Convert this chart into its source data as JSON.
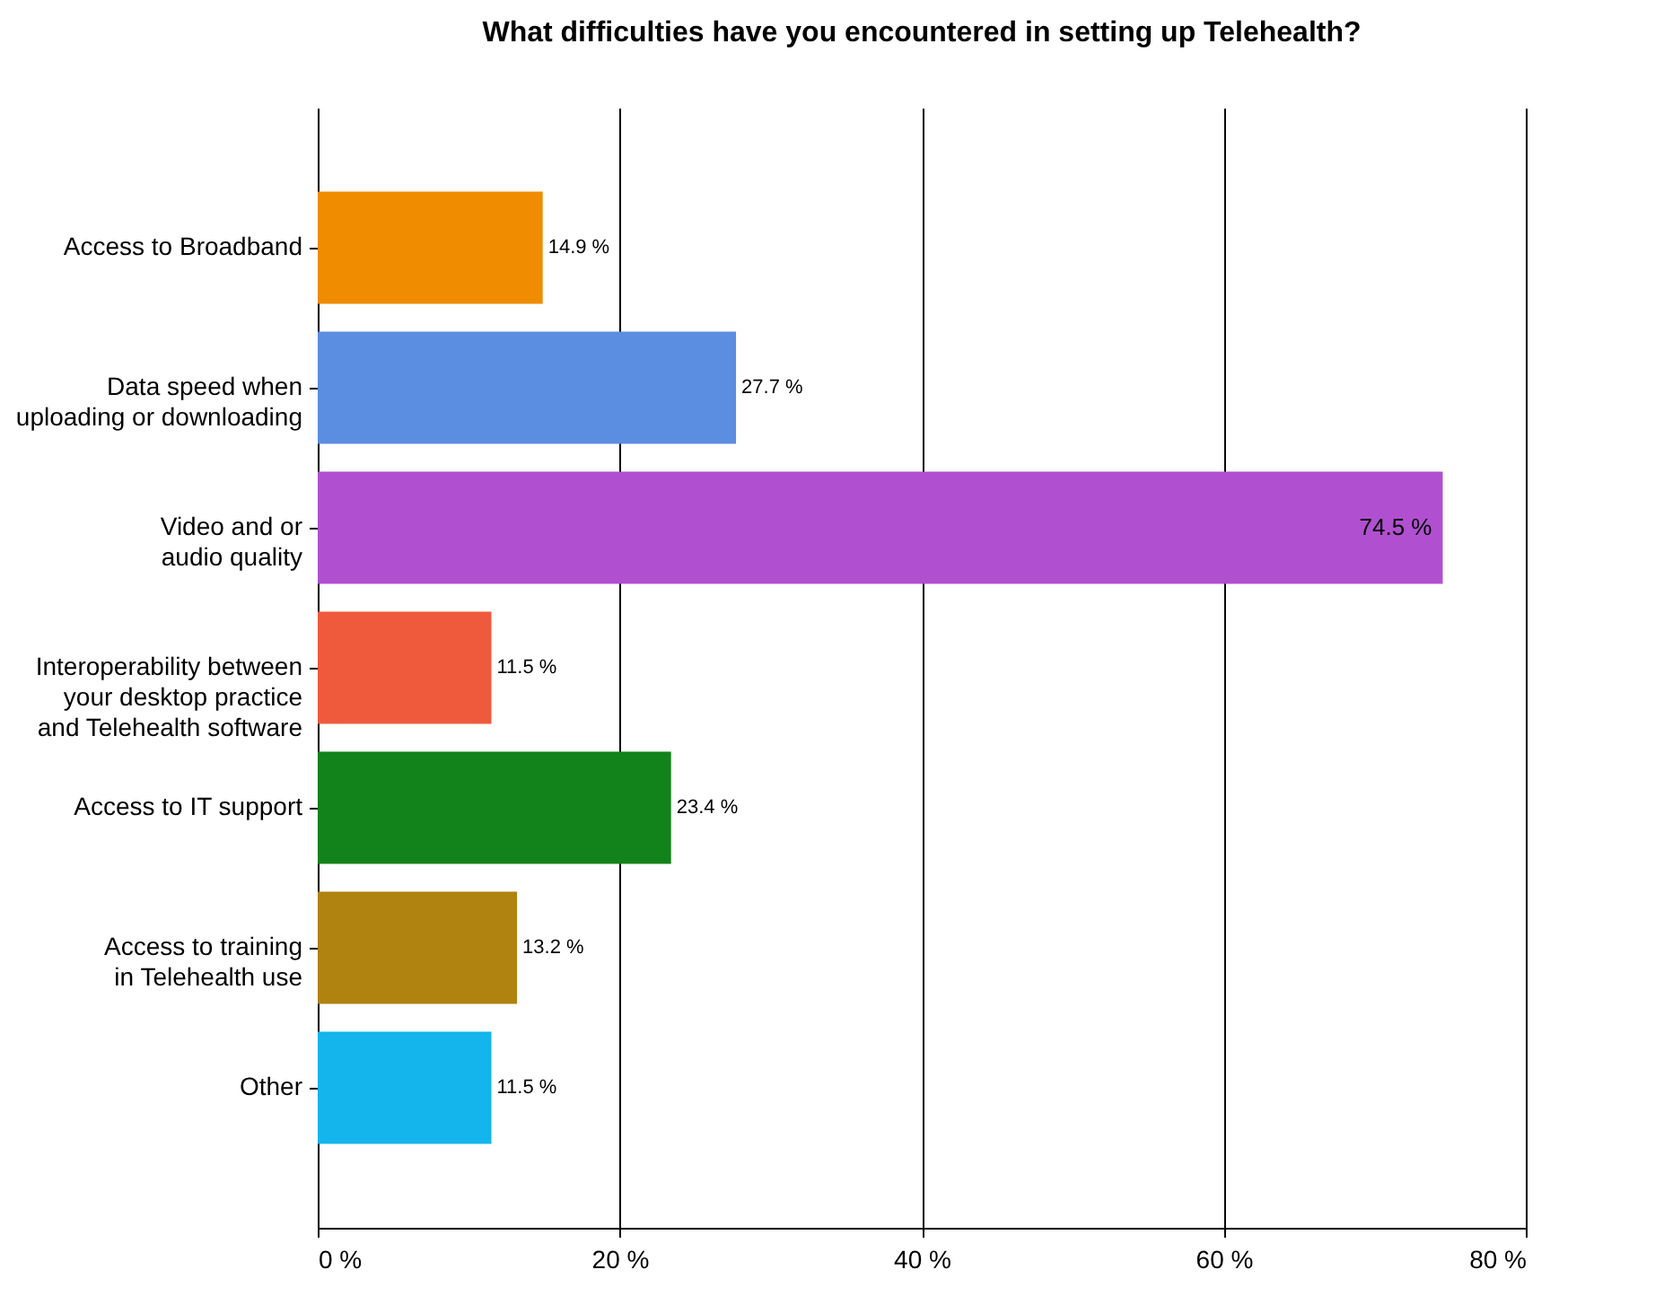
{
  "chart_data": {
    "type": "bar",
    "orientation": "horizontal",
    "title": "What difficulties have you encountered in setting up Telehealth?",
    "categories": [
      "Access to Broadband",
      "Data speed when uploading or downloading",
      "Video and or audio quality",
      "Interoperability between your desktop practice and Telehealth software",
      "Access to IT support",
      "Access to training in Telehealth use",
      "Other"
    ],
    "values": [
      14.9,
      27.7,
      74.5,
      11.5,
      23.4,
      13.2,
      11.5
    ],
    "value_labels": [
      "14.9 %",
      "27.7 %",
      "74.5 %",
      "11.5 %",
      "23.4 %",
      "13.2 %",
      "11.5 %"
    ],
    "colors": [
      "#f08c00",
      "#5b8de0",
      "#b050d0",
      "#f05a3c",
      "#12821a",
      "#b08210",
      "#14b4ec"
    ],
    "xlim": [
      0,
      80
    ],
    "xticks": [
      {
        "value": 0,
        "label": "0 %"
      },
      {
        "value": 20,
        "label": "20 %"
      },
      {
        "value": 40,
        "label": "40 %"
      },
      {
        "value": 60,
        "label": "60 %"
      },
      {
        "value": 80,
        "label": "80 %"
      }
    ],
    "grid": "x"
  }
}
